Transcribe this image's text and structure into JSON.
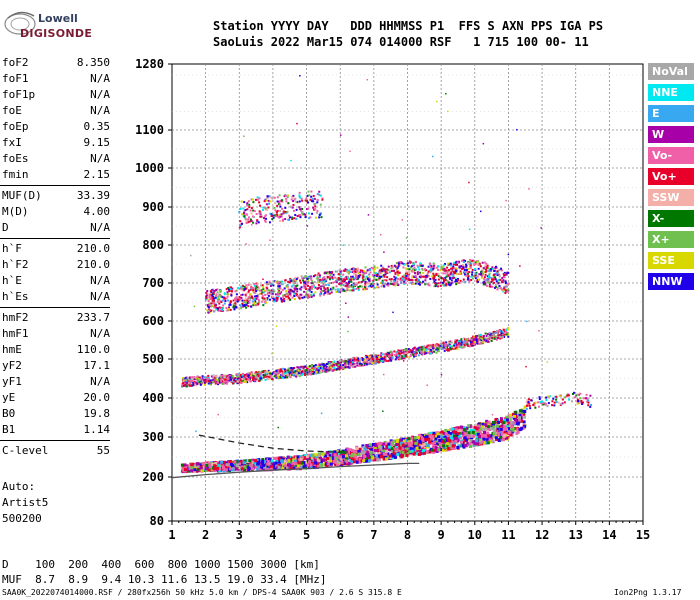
{
  "logo": {
    "line1": "Lowell",
    "line2": "DIGISONDE"
  },
  "header": {
    "row1": "Station YYYY DAY   DDD HHMMSS P1  FFS S AXN PPS IGA PS",
    "row2": "SaoLuis 2022 Mar15 074 014000 RSF   1 715 100 00- 11"
  },
  "params": [
    {
      "name": "foF2",
      "value": "8.350"
    },
    {
      "name": "foF1",
      "value": "N/A"
    },
    {
      "name": "foF1p",
      "value": "N/A"
    },
    {
      "name": "foE",
      "value": "N/A"
    },
    {
      "name": "foEp",
      "value": "0.35"
    },
    {
      "name": "fxI",
      "value": "9.15"
    },
    {
      "name": "foEs",
      "value": "N/A"
    },
    {
      "name": "fmin",
      "value": "2.15"
    },
    {
      "name": "MUF(D)",
      "value": "33.39"
    },
    {
      "name": "M(D)",
      "value": "4.00"
    },
    {
      "name": "D",
      "value": "N/A"
    },
    {
      "name": "h`F",
      "value": "210.0"
    },
    {
      "name": "h`F2",
      "value": "210.0"
    },
    {
      "name": "h`E",
      "value": "N/A"
    },
    {
      "name": "h`Es",
      "value": "N/A"
    },
    {
      "name": "hmF2",
      "value": "233.7"
    },
    {
      "name": "hmF1",
      "value": "N/A"
    },
    {
      "name": "hmE",
      "value": "110.0"
    },
    {
      "name": "yF2",
      "value": "17.1"
    },
    {
      "name": "yF1",
      "value": "N/A"
    },
    {
      "name": "yE",
      "value": "20.0"
    },
    {
      "name": "B0",
      "value": "19.8"
    },
    {
      "name": "B1",
      "value": "1.14"
    },
    {
      "name": "C-level",
      "value": "55"
    }
  ],
  "autoscale": {
    "line1": "Auto:",
    "line2": "Artist5",
    "line3": "500200"
  },
  "legend": [
    {
      "label": "NoVal",
      "color": "#a8a8a8"
    },
    {
      "label": "NNE",
      "color": "#00e8f0"
    },
    {
      "label": "E",
      "color": "#38a8f0"
    },
    {
      "label": "W",
      "color": "#a800a8"
    },
    {
      "label": "Vo-",
      "color": "#f060a8"
    },
    {
      "label": "Vo+",
      "color": "#e8002a"
    },
    {
      "label": "SSW",
      "color": "#f4b0a8"
    },
    {
      "label": "X-",
      "color": "#007800"
    },
    {
      "label": "X+",
      "color": "#70c050"
    },
    {
      "label": "SSE",
      "color": "#d8d800"
    },
    {
      "label": "NNW",
      "color": "#2000e8"
    }
  ],
  "chart_data": {
    "type": "scatter",
    "title": "",
    "xlabel": "",
    "ylabel": "",
    "xlim": [
      1,
      15
    ],
    "ylim": [
      80,
      1280
    ],
    "x_ticks": [
      "1",
      "2",
      "3",
      "4",
      "5",
      "6",
      "7",
      "8",
      "9",
      "10",
      "11",
      "12",
      "13",
      "14",
      "15"
    ],
    "y_ticks": [
      "80",
      "200",
      "300",
      "400",
      "500",
      "600",
      "700",
      "800",
      "900",
      "1000",
      "1100",
      "1280"
    ],
    "grid": true,
    "y_scale": "nonlinear (ionogram virtual height)",
    "traces": [
      {
        "name": "F-layer O/X traces (1st hop)",
        "x": [
          1.3,
          2,
          3,
          4,
          5,
          6,
          7,
          8,
          9,
          10,
          11,
          11.5
        ],
        "y": [
          222,
          225,
          228,
          232,
          238,
          248,
          262,
          275,
          290,
          305,
          325,
          350
        ]
      },
      {
        "name": "2nd hop",
        "x": [
          1.3,
          2,
          3,
          4,
          5,
          6,
          7,
          8,
          9,
          10,
          11
        ],
        "y": [
          440,
          445,
          450,
          460,
          470,
          485,
          500,
          515,
          530,
          548,
          570
        ]
      },
      {
        "name": "3rd hop",
        "x": [
          2,
          3,
          4,
          5,
          6,
          7,
          8,
          9,
          10,
          11
        ],
        "y": [
          650,
          662,
          675,
          690,
          705,
          715,
          728,
          720,
          735,
          700
        ]
      },
      {
        "name": "4th hop",
        "x": [
          3,
          3.5,
          4,
          4.5,
          5,
          5.5
        ],
        "y": [
          880,
          890,
          895,
          900,
          905,
          905
        ]
      },
      {
        "name": "High frequency tail",
        "x": [
          11.5,
          12,
          12.5,
          13,
          13.5
        ],
        "y": [
          380,
          390,
          395,
          400,
          390
        ]
      }
    ],
    "profile_lines": [
      {
        "name": "Electron density profile (solid)",
        "x": [
          1,
          2,
          3,
          4,
          5,
          6,
          7,
          8,
          8.35
        ],
        "y": [
          198,
          206,
          212,
          217,
          221,
          226,
          230,
          234,
          234
        ]
      },
      {
        "name": "Dashed profile",
        "x": [
          1.8,
          3,
          4,
          5,
          6
        ],
        "y": [
          305,
          285,
          272,
          265,
          262
        ]
      }
    ]
  },
  "footer": {
    "row1": "D    100  200  400  600  800 1000 1500 3000 [km]",
    "row2": "MUF  8.7  8.9  9.4 10.3 11.6 13.5 19.0 33.4 [MHz]",
    "note": "SAA0K_2022074014000.RSF / 280fx256h 50 kHz 5.0 km / DPS-4 SAA0K 903 / 2.6 S 315.8 E",
    "version": "Ion2Png 1.3.17"
  }
}
